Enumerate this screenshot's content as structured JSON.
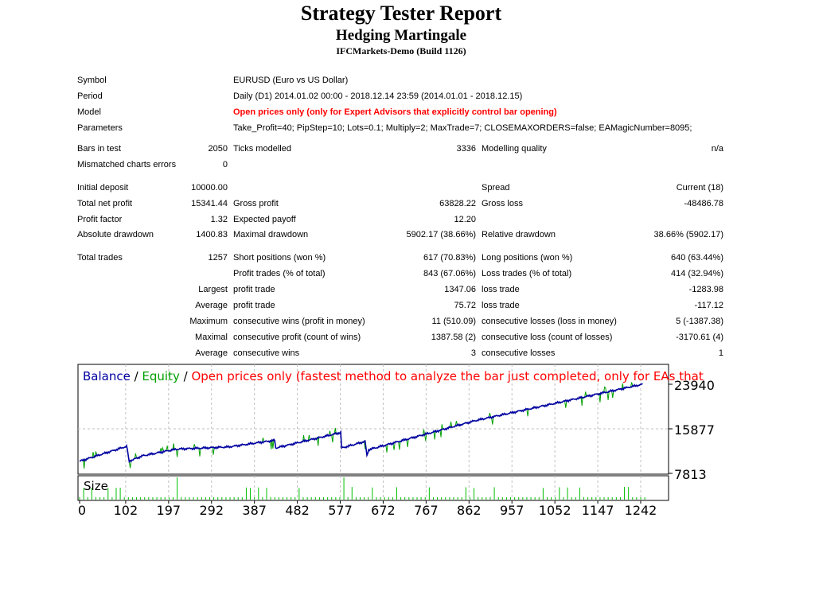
{
  "header": {
    "title": "Strategy Tester Report",
    "subtitle": "Hedging Martingale",
    "server": "IFCMarkets-Demo (Build 1126)"
  },
  "info": [
    {
      "label": "Symbol",
      "value": "EURUSD (Euro vs US Dollar)"
    },
    {
      "label": "Period",
      "value": "Daily (D1) 2014.01.02 00:00 - 2018.12.14 23:59 (2014.01.01 - 2018.12.15)"
    },
    {
      "label": "Model",
      "value": "Open prices only (only for Expert Advisors that explicitly control bar opening)"
    },
    {
      "label": "Parameters",
      "value": "Take_Profit=40; PipStep=10; Lots=0.1; Multiply=2; MaxTrade=7; CLOSEMAXORDERS=false; EAMagicNumber=8095;"
    }
  ],
  "rows": [
    [
      [
        "Bars in test",
        "2050"
      ],
      [
        "Ticks modelled",
        "3336"
      ],
      [
        "Modelling quality",
        "n/a"
      ]
    ],
    [
      [
        "Mismatched charts errors",
        "0"
      ],
      null,
      null
    ],
    [
      [
        "Initial deposit",
        "10000.00"
      ],
      null,
      [
        "Spread",
        "Current (18)"
      ]
    ],
    [
      [
        "Total net profit",
        "15341.44"
      ],
      [
        "Gross profit",
        "63828.22"
      ],
      [
        "Gross loss",
        "-48486.78"
      ]
    ],
    [
      [
        "Profit factor",
        "1.32"
      ],
      [
        "Expected payoff",
        "12.20"
      ],
      null
    ],
    [
      [
        "Absolute drawdown",
        "1400.83"
      ],
      [
        "Maximal drawdown",
        "5902.17 (38.66%)"
      ],
      [
        "Relative drawdown",
        "38.66% (5902.17)"
      ]
    ],
    [
      [
        "Total trades",
        "1257"
      ],
      [
        "Short positions (won %)",
        "617 (70.83%)"
      ],
      [
        "Long positions (won %)",
        "640 (63.44%)"
      ]
    ],
    [
      null,
      [
        "Profit trades (% of total)",
        "843 (67.06%)"
      ],
      [
        "Loss trades (% of total)",
        "414 (32.94%)"
      ]
    ],
    [
      [
        "Largest",
        ""
      ],
      [
        "profit trade",
        "1347.06"
      ],
      [
        "loss trade",
        "-1283.98"
      ]
    ],
    [
      [
        "Average",
        ""
      ],
      [
        "profit trade",
        "75.72"
      ],
      [
        "loss trade",
        "-117.12"
      ]
    ],
    [
      [
        "Maximum",
        ""
      ],
      [
        "consecutive wins (profit in money)",
        "11 (510.09)"
      ],
      [
        "consecutive losses (loss in money)",
        "5 (-1387.38)"
      ]
    ],
    [
      [
        "Maximal",
        ""
      ],
      [
        "consecutive profit (count of wins)",
        "1387.58 (2)"
      ],
      [
        "consecutive loss (count of losses)",
        "-3170.61 (4)"
      ]
    ],
    [
      [
        "Average",
        ""
      ],
      [
        "consecutive wins",
        "3"
      ],
      [
        "consecutive losses",
        "1"
      ]
    ]
  ],
  "chart_data": {
    "type": "line",
    "legend": {
      "balance": "Balance",
      "sep1": " / ",
      "equity": "Equity",
      "sep2": " / ",
      "model": "Open prices only (fastest method to analyze the bar just completed, only for EAs that"
    },
    "y_ticks": [
      "23940",
      "15877",
      "7813"
    ],
    "ylim": [
      7813,
      23940
    ],
    "x_ticks": [
      "0",
      "102",
      "197",
      "292",
      "387",
      "482",
      "577",
      "672",
      "767",
      "862",
      "957",
      "1052",
      "1147",
      "1242"
    ],
    "xlim": [
      0,
      1257
    ],
    "size_label": "Size",
    "balance": [
      [
        0,
        10000
      ],
      [
        100,
        12600
      ],
      [
        105,
        12700
      ],
      [
        109,
        10000
      ],
      [
        140,
        11000
      ],
      [
        214,
        12200
      ],
      [
        330,
        12600
      ],
      [
        432,
        13800
      ],
      [
        434,
        12400
      ],
      [
        578,
        15200
      ],
      [
        580,
        12400
      ],
      [
        632,
        13600
      ],
      [
        636,
        11000
      ],
      [
        640,
        12100
      ],
      [
        878,
        17400
      ],
      [
        1042,
        20300
      ],
      [
        1246,
        23940
      ]
    ],
    "colors": {
      "balance": "#0000a0",
      "equity": "#00a000",
      "model": "#ff0000",
      "grid": "#c0c0c0"
    }
  }
}
